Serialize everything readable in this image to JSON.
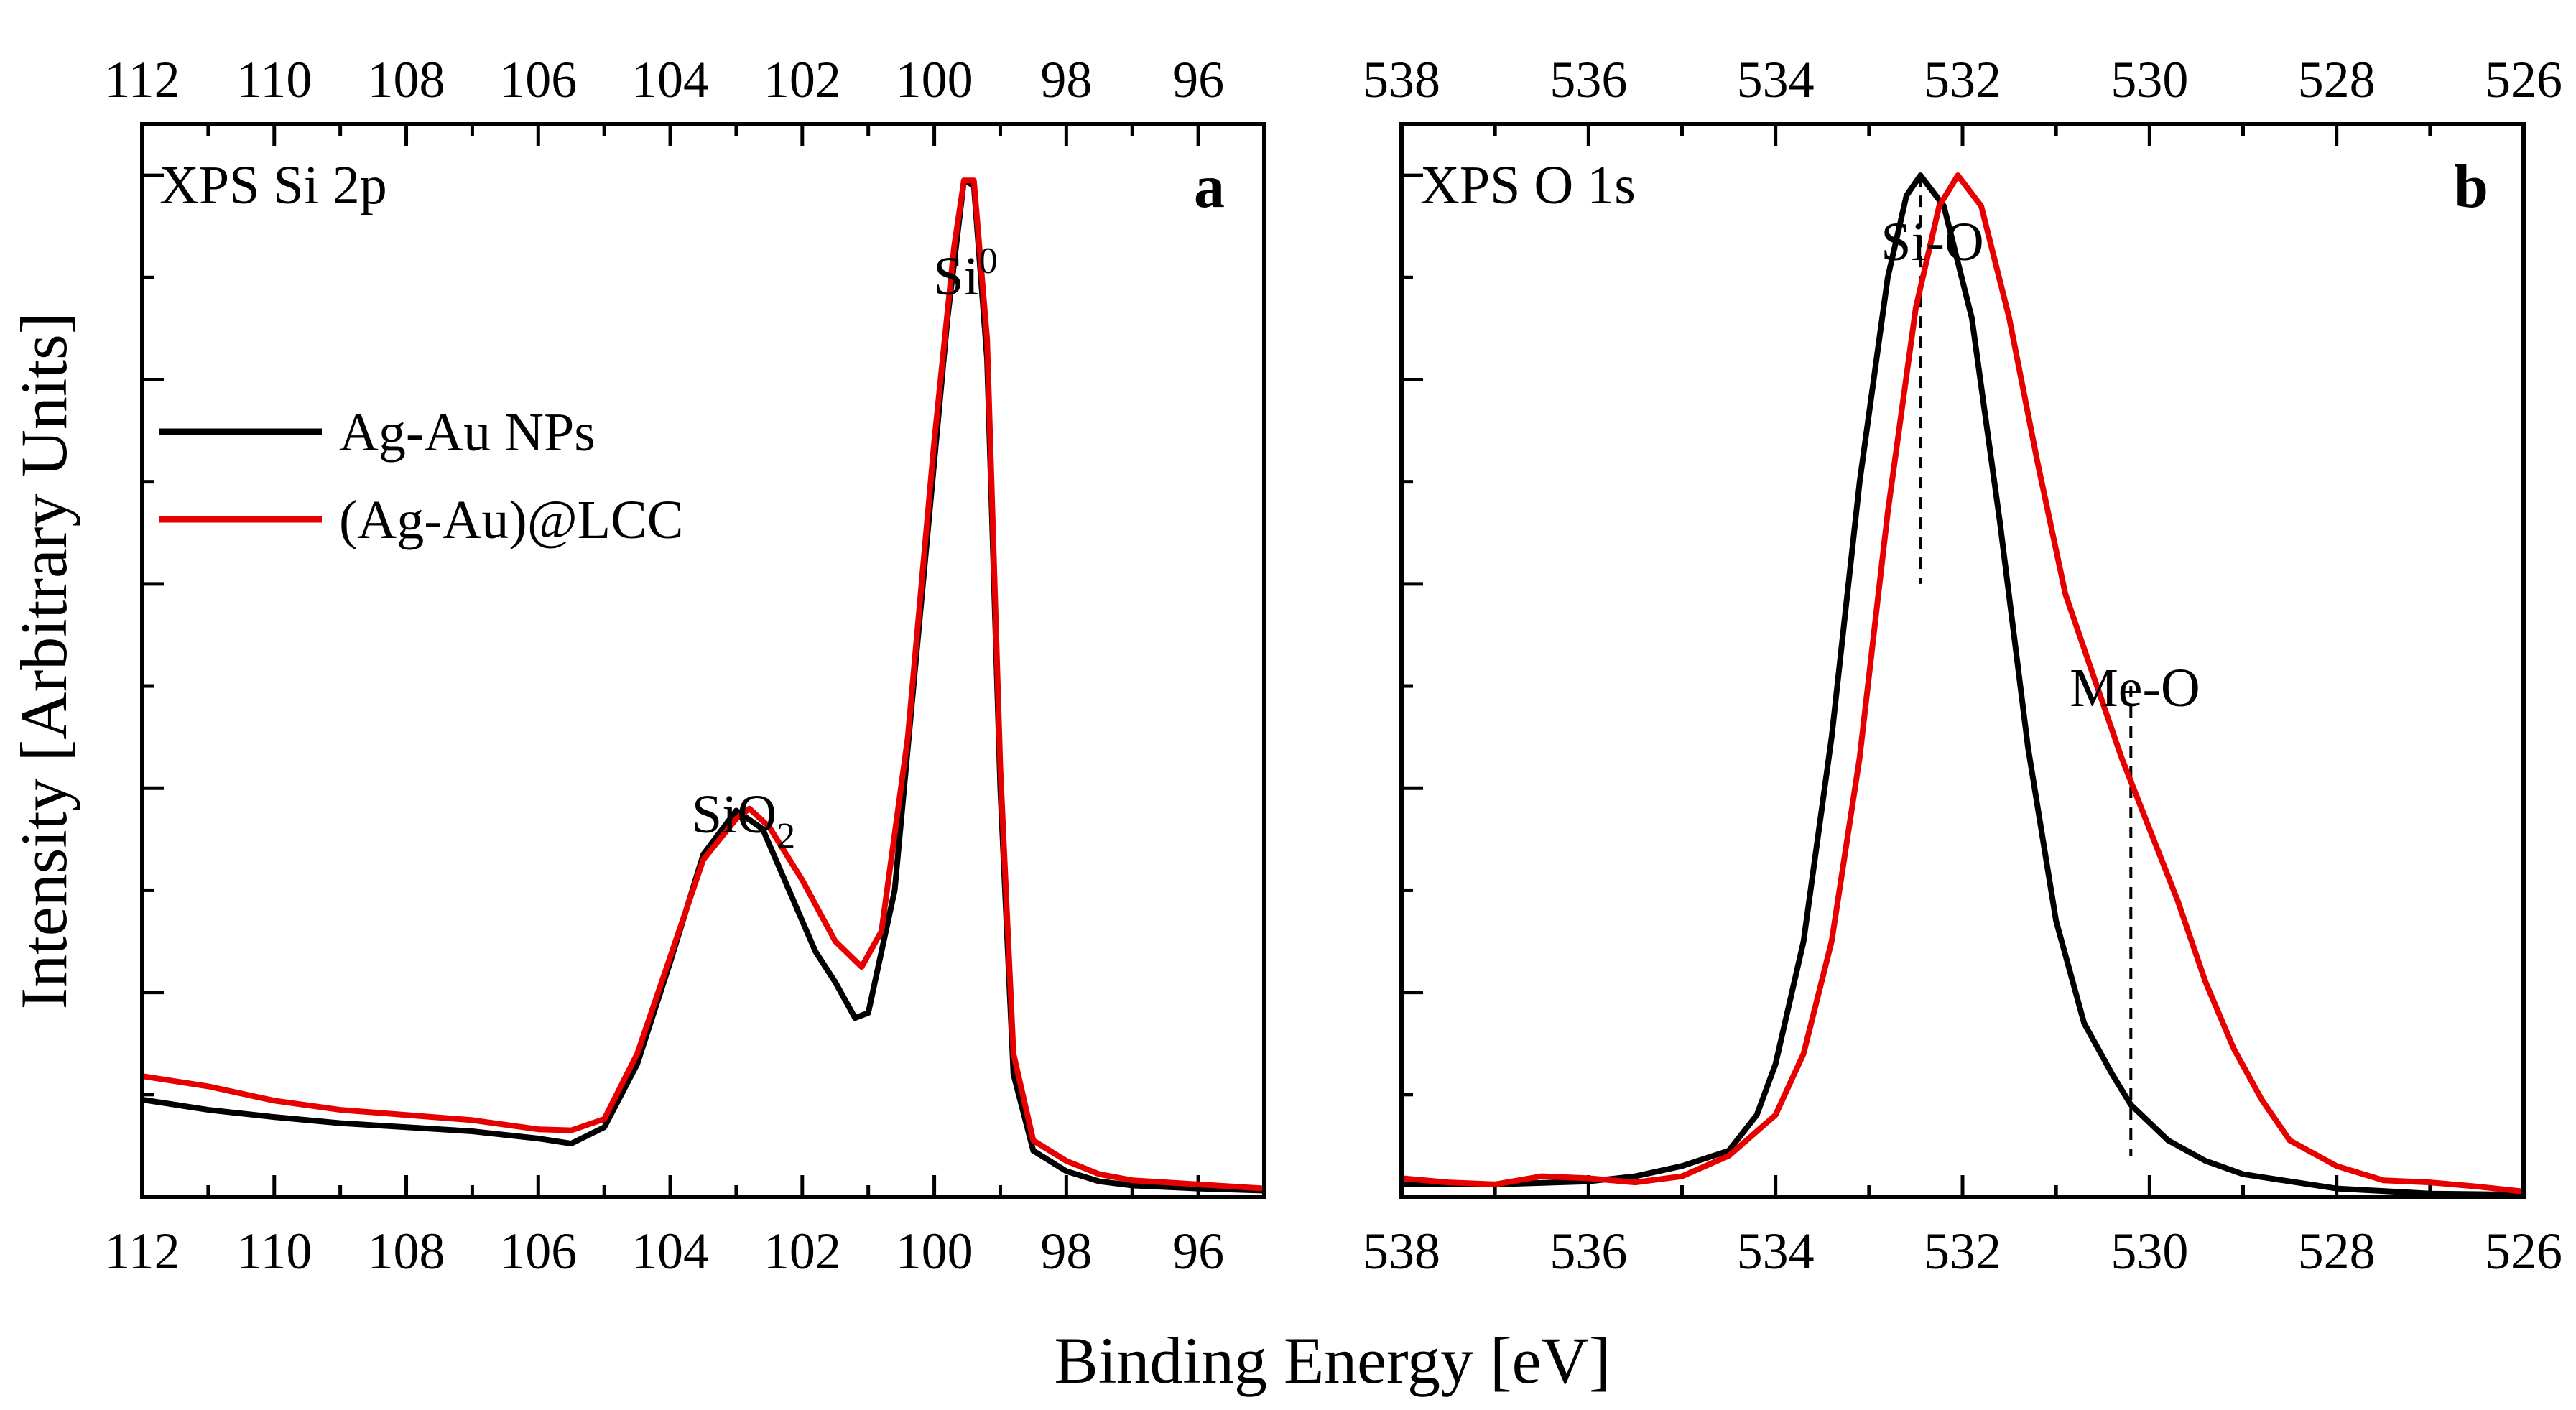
{
  "figure": {
    "ylabel": "Intensity [Arbitrary Units]",
    "xlabel": "Binding Energy [eV]"
  },
  "legend": [
    {
      "label": "Ag-Au NPs",
      "color": "#000000"
    },
    {
      "label": "(Ag-Au)@LCC",
      "color": "#e60000"
    }
  ],
  "chart_data": [
    {
      "type": "line",
      "panel": "a",
      "title": "XPS Si 2p",
      "xlabel": "Binding Energy [eV]",
      "ylabel": "Intensity [Arbitrary Units]",
      "xlim": [
        112,
        95
      ],
      "ylim": [
        0,
        1.05
      ],
      "xticks": [
        112,
        110,
        108,
        106,
        104,
        102,
        100,
        98,
        96
      ],
      "annotations": [
        {
          "text": "SiO",
          "subscript": "2",
          "x": 103.3,
          "y": 0.41
        },
        {
          "text": "Si",
          "superscript": "0",
          "x": 99.5,
          "y": 1.02
        }
      ],
      "series": [
        {
          "name": "Ag-Au NPs",
          "color": "#000000",
          "points": [
            [
              112,
              0.095
            ],
            [
              111,
              0.085
            ],
            [
              110,
              0.078
            ],
            [
              109,
              0.072
            ],
            [
              108,
              0.068
            ],
            [
              107,
              0.064
            ],
            [
              106,
              0.057
            ],
            [
              105.5,
              0.052
            ],
            [
              105,
              0.068
            ],
            [
              104.5,
              0.13
            ],
            [
              104,
              0.23
            ],
            [
              103.5,
              0.335
            ],
            [
              103,
              0.378
            ],
            [
              102.6,
              0.36
            ],
            [
              102.2,
              0.3
            ],
            [
              101.8,
              0.24
            ],
            [
              101.5,
              0.21
            ],
            [
              101.2,
              0.175
            ],
            [
              101,
              0.18
            ],
            [
              100.6,
              0.3
            ],
            [
              100.2,
              0.58
            ],
            [
              99.8,
              0.86
            ],
            [
              99.55,
              0.995
            ],
            [
              99.4,
              0.99
            ],
            [
              99.2,
              0.82
            ],
            [
              99,
              0.4
            ],
            [
              98.8,
              0.12
            ],
            [
              98.5,
              0.045
            ],
            [
              98,
              0.025
            ],
            [
              97.5,
              0.015
            ],
            [
              97,
              0.011
            ],
            [
              96,
              0.008
            ],
            [
              95,
              0.006
            ]
          ]
        },
        {
          "name": "(Ag-Au)@LCC",
          "color": "#e60000",
          "points": [
            [
              112,
              0.118
            ],
            [
              111,
              0.108
            ],
            [
              110,
              0.094
            ],
            [
              109,
              0.085
            ],
            [
              108,
              0.08
            ],
            [
              107,
              0.075
            ],
            [
              106,
              0.066
            ],
            [
              105.5,
              0.065
            ],
            [
              105,
              0.076
            ],
            [
              104.5,
              0.14
            ],
            [
              104,
              0.235
            ],
            [
              103.5,
              0.33
            ],
            [
              103,
              0.37
            ],
            [
              102.8,
              0.38
            ],
            [
              102.5,
              0.362
            ],
            [
              102,
              0.31
            ],
            [
              101.5,
              0.25
            ],
            [
              101.1,
              0.225
            ],
            [
              100.8,
              0.26
            ],
            [
              100.4,
              0.45
            ],
            [
              100,
              0.74
            ],
            [
              99.7,
              0.93
            ],
            [
              99.55,
              0.995
            ],
            [
              99.4,
              0.995
            ],
            [
              99.2,
              0.84
            ],
            [
              99,
              0.42
            ],
            [
              98.8,
              0.14
            ],
            [
              98.5,
              0.055
            ],
            [
              98,
              0.035
            ],
            [
              97.5,
              0.022
            ],
            [
              97,
              0.016
            ],
            [
              96,
              0.012
            ],
            [
              95,
              0.008
            ]
          ]
        }
      ]
    },
    {
      "type": "line",
      "panel": "b",
      "title": "XPS O 1s",
      "xlabel": "Binding Energy [eV]",
      "ylabel": "Intensity [Arbitrary Units]",
      "xlim": [
        538,
        526
      ],
      "ylim": [
        0,
        1.05
      ],
      "xticks": [
        538,
        536,
        534,
        532,
        530,
        528,
        526
      ],
      "annotations": [
        {
          "text": "Si-O",
          "x": 532.45,
          "y": 1.08
        },
        {
          "text": "Me-O",
          "x": 530.2,
          "y": 0.58
        }
      ],
      "reference_lines": [
        {
          "x": 532.45,
          "y_from": 0.6,
          "y_to": 1.0
        },
        {
          "x": 530.2,
          "y_from": 0.04,
          "y_to": 0.5
        }
      ],
      "series": [
        {
          "name": "Ag-Au NPs",
          "color": "#000000",
          "points": [
            [
              538,
              0.012
            ],
            [
              537,
              0.012
            ],
            [
              536,
              0.015
            ],
            [
              535.5,
              0.02
            ],
            [
              535,
              0.03
            ],
            [
              534.5,
              0.045
            ],
            [
              534.2,
              0.08
            ],
            [
              534,
              0.13
            ],
            [
              533.7,
              0.25
            ],
            [
              533.4,
              0.45
            ],
            [
              533.1,
              0.7
            ],
            [
              532.8,
              0.9
            ],
            [
              532.6,
              0.98
            ],
            [
              532.45,
              1.0
            ],
            [
              532.2,
              0.97
            ],
            [
              531.9,
              0.86
            ],
            [
              531.6,
              0.66
            ],
            [
              531.3,
              0.44
            ],
            [
              531,
              0.27
            ],
            [
              530.7,
              0.17
            ],
            [
              530.4,
              0.12
            ],
            [
              530.2,
              0.09
            ],
            [
              529.8,
              0.055
            ],
            [
              529.4,
              0.035
            ],
            [
              529,
              0.022
            ],
            [
              528.5,
              0.015
            ],
            [
              528,
              0.008
            ],
            [
              527,
              0.003
            ],
            [
              526,
              0.002
            ]
          ]
        },
        {
          "name": "(Ag-Au)@LCC",
          "color": "#e60000",
          "points": [
            [
              538,
              0.018
            ],
            [
              537.5,
              0.014
            ],
            [
              537,
              0.012
            ],
            [
              536.5,
              0.02
            ],
            [
              536,
              0.018
            ],
            [
              535.5,
              0.014
            ],
            [
              535,
              0.02
            ],
            [
              534.5,
              0.04
            ],
            [
              534,
              0.08
            ],
            [
              533.7,
              0.14
            ],
            [
              533.4,
              0.25
            ],
            [
              533.1,
              0.43
            ],
            [
              532.8,
              0.67
            ],
            [
              532.5,
              0.87
            ],
            [
              532.25,
              0.97
            ],
            [
              532.05,
              1.0
            ],
            [
              531.8,
              0.97
            ],
            [
              531.5,
              0.86
            ],
            [
              531.2,
              0.72
            ],
            [
              530.9,
              0.59
            ],
            [
              530.6,
              0.51
            ],
            [
              530.3,
              0.43
            ],
            [
              530,
              0.36
            ],
            [
              529.7,
              0.29
            ],
            [
              529.4,
              0.21
            ],
            [
              529.1,
              0.145
            ],
            [
              528.8,
              0.095
            ],
            [
              528.5,
              0.055
            ],
            [
              528,
              0.03
            ],
            [
              527.5,
              0.016
            ],
            [
              527,
              0.014
            ],
            [
              526.5,
              0.01
            ],
            [
              526,
              0.005
            ]
          ]
        }
      ]
    }
  ]
}
